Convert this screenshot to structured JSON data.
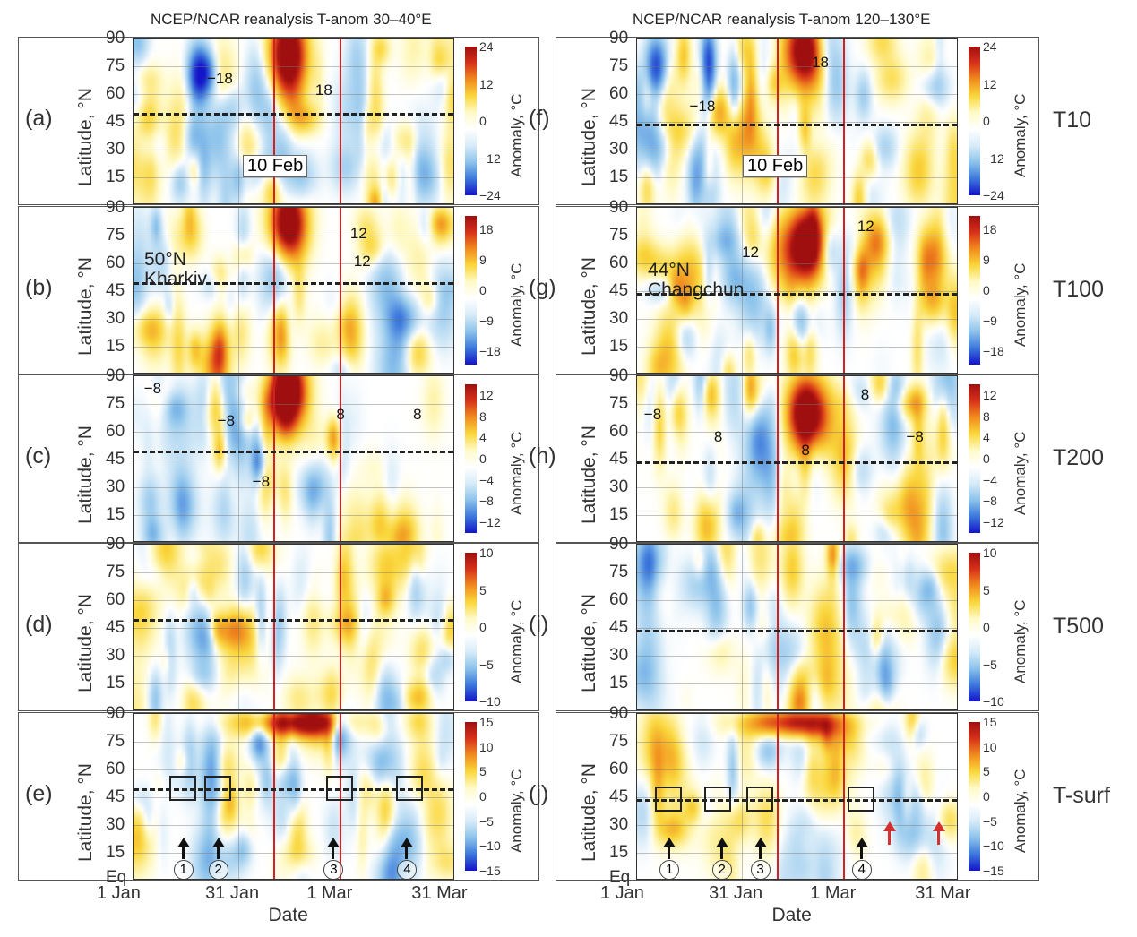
{
  "chart_data": {
    "type": "heatmap",
    "titles": [
      "NCEP/NCAR reanalysis T-anom  30–40°E",
      "NCEP/NCAR reanalysis T-anom  120–130°E"
    ],
    "ylabel": "Latitude, °N",
    "xlabel": "Date",
    "yticks": [
      "90",
      "75",
      "60",
      "45",
      "30",
      "15"
    ],
    "yticks_bottom": "Eq",
    "ylim": [
      0,
      90
    ],
    "xticks": [
      "1 Jan",
      "31 Jan",
      "1 Mar",
      "31 Mar"
    ],
    "xtick_days": [
      0,
      30,
      59,
      89
    ],
    "xlim_days": [
      0,
      92
    ],
    "event_days": [
      40,
      59
    ],
    "event_label": "10 Feb",
    "colorbar_label": "Anomaly, °C",
    "rows": [
      {
        "level": "T10",
        "range": 24,
        "ticks": [
          "24",
          "12",
          "0",
          "−12",
          "−24"
        ]
      },
      {
        "level": "T100",
        "range": 22,
        "ticks": [
          "18",
          "9",
          "0",
          "−9",
          "−18"
        ]
      },
      {
        "level": "T200",
        "range": 14,
        "ticks": [
          "12",
          "8",
          "4",
          "0",
          "−4",
          "−8",
          "−12"
        ]
      },
      {
        "level": "T500",
        "range": 10,
        "ticks": [
          "10",
          "5",
          "0",
          "−5",
          "−10"
        ]
      },
      {
        "level": "T-surf",
        "range": 15,
        "ticks": [
          "15",
          "10",
          "5",
          "0",
          "−5",
          "−10",
          "−15"
        ]
      }
    ],
    "panels": [
      {
        "id": "(a)",
        "side": 0,
        "row": 0,
        "ref_lat": 50,
        "labels": [
          {
            "t": "−18",
            "d": 21,
            "lat": 68
          },
          {
            "t": "18",
            "d": 52,
            "lat": 62
          }
        ]
      },
      {
        "id": "(b)",
        "side": 0,
        "row": 1,
        "ref_lat": 50,
        "labels": [
          {
            "t": "12",
            "d": 62,
            "lat": 76
          },
          {
            "t": "12",
            "d": 63,
            "lat": 61
          }
        ],
        "city": [
          "50°N",
          "Kharkiv"
        ]
      },
      {
        "id": "(c)",
        "side": 0,
        "row": 2,
        "ref_lat": 50,
        "labels": [
          {
            "t": "−8",
            "d": 3,
            "lat": 83
          },
          {
            "t": "−8",
            "d": 24,
            "lat": 66
          },
          {
            "t": "−8",
            "d": 34,
            "lat": 33
          },
          {
            "t": "8",
            "d": 58,
            "lat": 69
          },
          {
            "t": "8",
            "d": 80,
            "lat": 69
          }
        ]
      },
      {
        "id": "(d)",
        "side": 0,
        "row": 3,
        "ref_lat": 50,
        "labels": []
      },
      {
        "id": "(e)",
        "side": 0,
        "row": 4,
        "ref_lat": 50,
        "labels": [],
        "boxes": [
          14,
          24,
          59,
          79
        ],
        "arrows": [
          {
            "n": "1",
            "d": 14
          },
          {
            "n": "2",
            "d": 24
          },
          {
            "n": "3",
            "d": 57
          },
          {
            "n": "4",
            "d": 78
          }
        ]
      },
      {
        "id": "(f)",
        "side": 1,
        "row": 0,
        "ref_lat": 44,
        "labels": [
          {
            "t": "18",
            "d": 50,
            "lat": 77
          },
          {
            "t": "−18",
            "d": 15,
            "lat": 53
          }
        ]
      },
      {
        "id": "(g)",
        "side": 1,
        "row": 1,
        "ref_lat": 44,
        "labels": [
          {
            "t": "12",
            "d": 30,
            "lat": 66
          },
          {
            "t": "12",
            "d": 63,
            "lat": 80
          }
        ],
        "city": [
          "44°N",
          "Changchun"
        ]
      },
      {
        "id": "(h)",
        "side": 1,
        "row": 2,
        "ref_lat": 44,
        "labels": [
          {
            "t": "−8",
            "d": 2,
            "lat": 69
          },
          {
            "t": "8",
            "d": 22,
            "lat": 57
          },
          {
            "t": "8",
            "d": 47,
            "lat": 50
          },
          {
            "t": "8",
            "d": 64,
            "lat": 80
          },
          {
            "t": "−8",
            "d": 77,
            "lat": 57
          }
        ]
      },
      {
        "id": "(i)",
        "side": 1,
        "row": 3,
        "ref_lat": 44,
        "labels": []
      },
      {
        "id": "(j)",
        "side": 1,
        "row": 4,
        "ref_lat": 44,
        "labels": [],
        "boxes": [
          9,
          23,
          35,
          64
        ],
        "arrows": [
          {
            "n": "1",
            "d": 9
          },
          {
            "n": "2",
            "d": 24
          },
          {
            "n": "3",
            "d": 35
          },
          {
            "n": "4",
            "d": 64
          }
        ],
        "red_arrows": [
          72,
          86
        ]
      }
    ]
  },
  "colors": {
    "event_line": "#d42020",
    "red_arrow": "#d43030"
  }
}
